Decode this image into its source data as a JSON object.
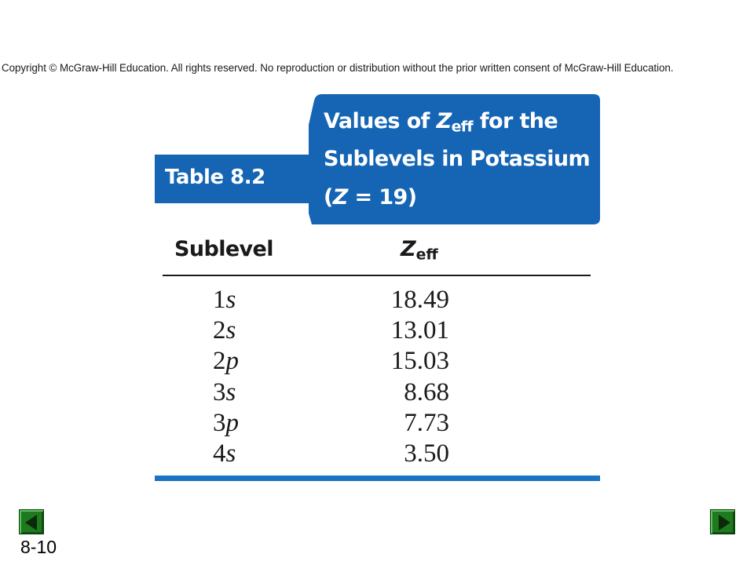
{
  "copyright": "Copyright © McGraw-Hill Education.  All rights reserved. No reproduction or distribution without the prior written consent of McGraw-Hill Education.",
  "table": {
    "label": "Table  8.2",
    "title": {
      "line1_prefix": "Values of ",
      "line1_z": "Z",
      "line1_sub": "eff",
      "line1_suffix": " for the",
      "line2": "Sublevels in Potassium",
      "line3_open": "(",
      "line3_z": "Z",
      "line3_rest": " = 19)"
    },
    "columns": {
      "sublevel": "Sublevel",
      "zeff_z": "Z",
      "zeff_sub": "eff"
    },
    "rows": [
      {
        "n": "1",
        "orbital": "s",
        "zeff": "18.49"
      },
      {
        "n": "2",
        "orbital": "s",
        "zeff": "13.01"
      },
      {
        "n": "2",
        "orbital": "p",
        "zeff": "15.03"
      },
      {
        "n": "3",
        "orbital": "s",
        "zeff": "8.68"
      },
      {
        "n": "3",
        "orbital": "p",
        "zeff": "7.73"
      },
      {
        "n": "4",
        "orbital": "s",
        "zeff": "3.50"
      }
    ]
  },
  "colors": {
    "accent_blue": "#1565b4",
    "nav_green": "#1f7a1f"
  },
  "nav": {
    "prev_icon": "triangle-left-icon",
    "next_icon": "triangle-right-icon"
  },
  "slide_number": "8-10"
}
